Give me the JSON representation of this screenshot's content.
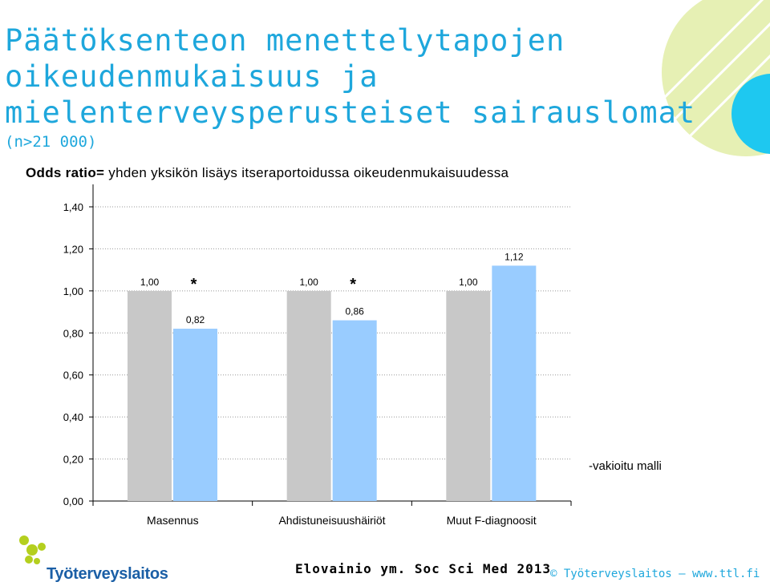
{
  "title_lines": [
    "Päätöksenteon menettelytapojen",
    "oikeudenmukaisuus ja",
    "mielenterveysperusteiset sairauslomat"
  ],
  "subtitle": "(n>21 000)",
  "odds_label": "Odds ratio=",
  "odds_desc": " yhden yksikön lisäys itseraportoidussa oikeudenmukaisuudessa",
  "citation": "Elovainio ym. Soc Sci Med 2013",
  "copyright": "© Työterveyslaitos — www.ttl.fi",
  "logo_text": "Työterveyslaitos",
  "colors": {
    "title": "#1ea7dc",
    "bar_reference": "#c8c8c8",
    "bar_adjusted": "#99ccff",
    "deco_green": "#e6f0b4",
    "deco_cyan": "#1ec8f0",
    "logo_green": "#b4cf1e",
    "logo_blue": "#1b5fa6"
  },
  "chart_data": {
    "type": "bar",
    "categories": [
      "Masennus",
      "Ahdistuneisuushäiriöt",
      "Muut F-diagnoosit"
    ],
    "series": [
      {
        "values": [
          1.0,
          1.0,
          1.0
        ],
        "labels": [
          "1,00",
          "1,00",
          "1,00"
        ]
      },
      {
        "name": "-vakioitu malli",
        "values": [
          0.82,
          0.86,
          1.12
        ],
        "labels": [
          "0,82",
          "0,86",
          "1,12"
        ],
        "significance": [
          "*",
          "*",
          ""
        ]
      }
    ],
    "yticks": [
      "0,00",
      "0,20",
      "0,40",
      "0,60",
      "0,80",
      "1,00",
      "1,20",
      "1,40"
    ],
    "ylim": [
      0,
      1.4
    ],
    "grid": true,
    "legend_text": "-vakioitu malli",
    "legend_placement": "right"
  }
}
